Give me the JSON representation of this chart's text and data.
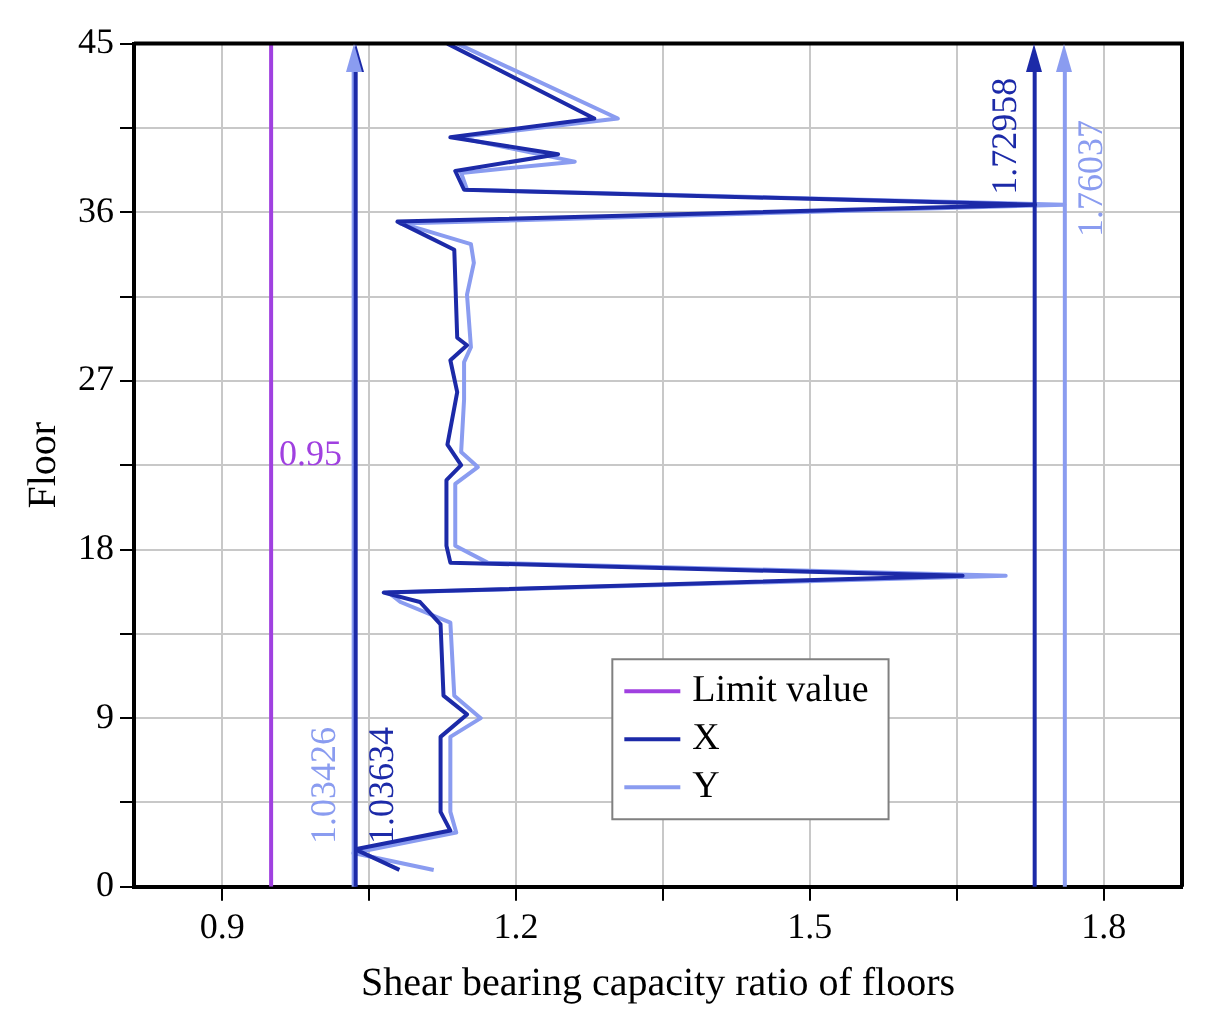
{
  "chart_data": {
    "type": "line",
    "xlabel": "Shear bearing capacity ratio of floors",
    "ylabel": "Floor",
    "xlim": [
      0.81,
      1.88
    ],
    "xticks": [
      0.9,
      {
        "value": 1.05,
        "label": null
      },
      1.2,
      {
        "value": 1.35,
        "label": null
      },
      1.5,
      {
        "value": 1.65,
        "label": null
      },
      1.8
    ],
    "ylim": [
      0,
      45
    ],
    "yticks": [
      0,
      {
        "value": 4.5,
        "label": null
      },
      9,
      {
        "value": 13.5,
        "label": null
      },
      18,
      {
        "value": 22.5,
        "label": null
      },
      27,
      {
        "value": 31.5,
        "label": null
      },
      36,
      {
        "value": 40.5,
        "label": null
      },
      45
    ],
    "grid": true,
    "legend": "bottom right",
    "marker": "none",
    "line_style": "solid",
    "series": [
      {
        "name": "Limit value",
        "color": "#a040e0",
        "x": [
          0.95,
          0.95
        ],
        "values": [
          0,
          45
        ]
      },
      {
        "name": "X",
        "color": "#1c2aa8",
        "x": [
          1.081,
          1.036,
          1.133,
          1.123,
          1.123,
          1.15,
          1.126,
          1.123,
          1.102,
          1.065,
          1.656,
          1.133,
          1.129,
          1.129,
          1.144,
          1.13,
          1.14,
          1.133,
          1.15,
          1.14,
          1.137,
          1.11,
          1.079,
          1.73,
          1.147,
          1.138,
          1.243,
          1.133,
          1.28,
          1.13
        ],
        "values": [
          0.9,
          2.0,
          3.0,
          4.0,
          8.0,
          9.2,
          10.2,
          14.0,
          15.2,
          15.7,
          16.6,
          17.3,
          18.2,
          21.7,
          22.5,
          23.6,
          26.4,
          28.1,
          28.9,
          29.3,
          34.0,
          34.7,
          35.5,
          36.4,
          37.2,
          38.2,
          39.1,
          40.0,
          41.0,
          45.0
        ]
      },
      {
        "name": "Y",
        "color": "#8a9cf0",
        "x": [
          1.116,
          1.034,
          1.139,
          1.133,
          1.133,
          1.164,
          1.137,
          1.133,
          1.082,
          1.07,
          1.7,
          1.171,
          1.138,
          1.138,
          1.161,
          1.144,
          1.147,
          1.147,
          1.154,
          1.15,
          1.157,
          1.154,
          1.103,
          1.082,
          1.76,
          1.15,
          1.144,
          1.26,
          1.14,
          1.304,
          1.14
        ],
        "values": [
          0.9,
          1.8,
          2.9,
          4.0,
          8.0,
          9.0,
          10.2,
          14.1,
          15.2,
          15.7,
          16.6,
          17.3,
          18.2,
          21.5,
          22.4,
          23.2,
          26.0,
          28.0,
          28.8,
          31.6,
          33.3,
          34.3,
          35.1,
          35.4,
          36.4,
          37.2,
          38.1,
          38.7,
          40.0,
          41.0,
          45.0
        ]
      }
    ],
    "ref_lines": [
      {
        "axis": "x",
        "value": 1.03634,
        "label": "1.03634",
        "color": "#1c2aa8"
      },
      {
        "axis": "x",
        "value": 1.03426,
        "label": "1.03426",
        "color": "#8a9cf0"
      },
      {
        "axis": "x",
        "value": 1.72958,
        "label": "1.72958",
        "color": "#1c2aa8"
      },
      {
        "axis": "x",
        "value": 1.76037,
        "label": "1.76037",
        "color": "#8a9cf0"
      }
    ],
    "annotations": [
      {
        "text": "0.95",
        "x": 0.95,
        "y": 23
      }
    ]
  }
}
